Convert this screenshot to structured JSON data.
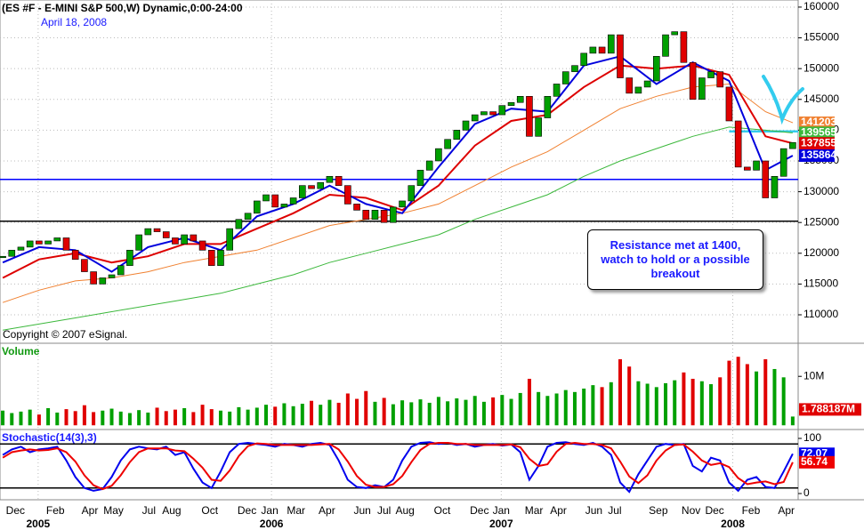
{
  "chart_data": [
    {
      "type": "candlestick",
      "title": "(ES #F - E-MINI S&P 500,W) Dynamic,0:00-24:00",
      "subtitle": "April 18, 2008",
      "footnote": "Copyright © 2007 eSignal.",
      "annotation": "Resistance met at 1400, watch to hold or a possible breakout",
      "color_up": "#00a000",
      "color_down": "#e00000",
      "values": [
        119500,
        120500,
        121000,
        122000,
        121500,
        122000,
        122500,
        120500,
        119000,
        117000,
        115000,
        116000,
        116500,
        118000,
        120500,
        123000,
        124000,
        123500,
        122500,
        121500,
        123000,
        122000,
        120500,
        118000,
        120500,
        124000,
        125500,
        126500,
        128500,
        129500,
        127500,
        128000,
        129000,
        131000,
        130500,
        131500,
        132500,
        131000,
        128000,
        127000,
        125500,
        127000,
        125000,
        127500,
        128500,
        131000,
        133500,
        135000,
        137000,
        138500,
        140000,
        141500,
        142500,
        143000,
        142500,
        144000,
        144500,
        145500,
        139000,
        142000,
        145500,
        147500,
        149500,
        150500,
        152500,
        153500,
        152500,
        155500,
        148500,
        146000,
        147000,
        148000,
        152000,
        155500,
        156000,
        151000,
        145000,
        148500,
        149500,
        147000,
        141500,
        134000,
        133500,
        135000,
        129000,
        132500,
        137000,
        138000
      ],
      "series": [
        {
          "color": "#f08030",
          "x": [
            0,
            4,
            8,
            12,
            16,
            20,
            24,
            28,
            32,
            36,
            40,
            44,
            48,
            52,
            56,
            60,
            64,
            68,
            72,
            76,
            80,
            84,
            87
          ],
          "values": [
            112000,
            114000,
            115500,
            116000,
            117000,
            118500,
            119500,
            120500,
            122500,
            124500,
            125500,
            126500,
            128000,
            131000,
            134000,
            136500,
            140000,
            143500,
            145500,
            147000,
            147500,
            143000,
            141203
          ]
        },
        {
          "color": "#3cb83c",
          "x": [
            0,
            4,
            8,
            12,
            16,
            20,
            24,
            28,
            32,
            36,
            40,
            44,
            48,
            52,
            56,
            60,
            64,
            68,
            72,
            76,
            80,
            84,
            87
          ],
          "values": [
            107500,
            108500,
            109500,
            110500,
            111500,
            112500,
            113500,
            115000,
            116500,
            118500,
            120000,
            121500,
            123000,
            125500,
            127500,
            129500,
            132500,
            135000,
            137000,
            139000,
            140500,
            140000,
            139565
          ]
        },
        {
          "color": "#dd0000",
          "x": [
            0,
            4,
            8,
            12,
            16,
            20,
            24,
            28,
            32,
            36,
            40,
            44,
            48,
            52,
            56,
            60,
            64,
            68,
            72,
            76,
            80,
            84,
            87
          ],
          "values": [
            116000,
            119000,
            120000,
            118500,
            119500,
            121500,
            121500,
            124000,
            126500,
            129500,
            129000,
            127000,
            131000,
            137500,
            141500,
            142500,
            147000,
            150500,
            150000,
            150500,
            149000,
            139000,
            137855
          ]
        },
        {
          "color": "#0000dd",
          "x": [
            0,
            4,
            8,
            12,
            16,
            20,
            24,
            28,
            32,
            36,
            40,
            44,
            48,
            52,
            56,
            60,
            64,
            68,
            72,
            76,
            80,
            84,
            87
          ],
          "values": [
            118500,
            121000,
            120500,
            117000,
            121000,
            122500,
            120500,
            126000,
            128000,
            131000,
            128000,
            126500,
            134000,
            141000,
            143500,
            143000,
            150500,
            152000,
            147500,
            151000,
            148000,
            133500,
            135864
          ]
        }
      ],
      "lines": [
        {
          "value": 132000,
          "color": "#0000ff",
          "start": -0.3
        },
        {
          "value": 125200,
          "color": "#000000",
          "start": -0.3
        },
        {
          "value": 139800,
          "color": "#33ccee",
          "start": 80
        }
      ],
      "xlim": [
        -0.3,
        87.6
      ],
      "ylim": [
        105520,
        161150
      ],
      "yticks": [
        110000,
        115000,
        120000,
        125000,
        130000,
        135000,
        140000,
        145000,
        150000,
        155000,
        160000
      ],
      "xticks": [
        {
          "value": 1.4,
          "label": "Dec"
        },
        {
          "value": 5.8,
          "label": "Feb"
        },
        {
          "value": 9.6,
          "label": "Apr"
        },
        {
          "value": 12.2,
          "label": "May"
        },
        {
          "value": 16.1,
          "label": "Jul"
        },
        {
          "value": 18.6,
          "label": "Aug"
        },
        {
          "value": 22.8,
          "label": "Oct"
        },
        {
          "value": 26.9,
          "label": "Dec"
        },
        {
          "value": 29.4,
          "label": "Jan"
        },
        {
          "value": 32.3,
          "label": "Mar"
        },
        {
          "value": 35.7,
          "label": "Apr"
        },
        {
          "value": 39.6,
          "label": "Jun"
        },
        {
          "value": 42,
          "label": "Jul"
        },
        {
          "value": 44.3,
          "label": "Aug"
        },
        {
          "value": 48.4,
          "label": "Oct"
        },
        {
          "value": 52.5,
          "label": "Dec"
        },
        {
          "value": 54.9,
          "label": "Jan"
        },
        {
          "value": 58.5,
          "label": "Mar"
        },
        {
          "value": 61.2,
          "label": "Apr"
        },
        {
          "value": 65.1,
          "label": "Jun"
        },
        {
          "value": 67.4,
          "label": "Jul"
        },
        {
          "value": 72.2,
          "label": "Sep"
        },
        {
          "value": 75.8,
          "label": "Nov"
        },
        {
          "value": 78.4,
          "label": "Dec"
        },
        {
          "value": 82.4,
          "label": "Feb"
        },
        {
          "value": 86.3,
          "label": "Apr"
        }
      ],
      "year_labels": [
        {
          "value": 3.9,
          "label": "2005"
        },
        {
          "value": 29.6,
          "label": "2006"
        },
        {
          "value": 54.9,
          "label": "2007"
        },
        {
          "value": 80.4,
          "label": "2008"
        }
      ],
      "grid": true
    },
    {
      "type": "bar",
      "title": "Volume",
      "values": [
        3000000,
        2500000,
        2800000,
        3200000,
        2200000,
        3500000,
        2600000,
        3300000,
        2900000,
        4100000,
        2700000,
        3000000,
        3400000,
        2800000,
        2500000,
        3100000,
        2600000,
        3600000,
        2900000,
        3200000,
        3500000,
        2700000,
        4200000,
        3300000,
        3000000,
        2800000,
        3700000,
        3200000,
        3600000,
        4200000,
        3800000,
        4500000,
        3900000,
        4400000,
        5000000,
        4200000,
        5200000,
        4600000,
        6500000,
        5400000,
        7000000,
        4800000,
        5600000,
        4300000,
        5100000,
        4700000,
        5300000,
        4600000,
        5800000,
        4900000,
        5500000,
        5200000,
        6000000,
        4800000,
        5700000,
        6200000,
        5400000,
        6600000,
        9500000,
        6800000,
        6000000,
        6500000,
        7200000,
        6800000,
        7500000,
        8200000,
        7800000,
        8800000,
        13500000,
        12000000,
        9000000,
        8500000,
        7800000,
        8600000,
        9200000,
        10800000,
        9500000,
        9000000,
        8400000,
        9800000,
        13200000,
        14000000,
        12500000,
        11000000,
        13500000,
        11500000,
        9800000,
        1788187
      ],
      "value_labels": {
        "87": "1.788187M"
      },
      "ylim": [
        -680000,
        16400000
      ],
      "yticks": [
        {
          "value": 10000000,
          "label": "10M"
        }
      ]
    },
    {
      "type": "line",
      "title": "Stochastic(14(3),3)",
      "series": [
        {
          "color": "#0000ee",
          "values": [
            70,
            80,
            85,
            75,
            80,
            82,
            85,
            60,
            30,
            10,
            5,
            8,
            30,
            60,
            80,
            85,
            82,
            80,
            85,
            70,
            75,
            45,
            20,
            10,
            40,
            75,
            90,
            92,
            90,
            88,
            85,
            90,
            88,
            85,
            90,
            92,
            88,
            60,
            25,
            12,
            10,
            15,
            12,
            25,
            60,
            85,
            92,
            93,
            90,
            92,
            88,
            90,
            85,
            88,
            90,
            87,
            89,
            75,
            25,
            50,
            85,
            92,
            93,
            90,
            88,
            92,
            85,
            70,
            20,
            3,
            35,
            60,
            85,
            90,
            88,
            90,
            50,
            40,
            65,
            60,
            20,
            5,
            25,
            30,
            12,
            10,
            40,
            72.07
          ]
        },
        {
          "color": "#ee0000",
          "values": [
            65,
            75,
            78,
            80,
            78,
            79,
            82,
            75,
            58,
            33,
            15,
            8,
            14,
            33,
            57,
            75,
            82,
            82,
            82,
            78,
            77,
            63,
            47,
            25,
            23,
            42,
            68,
            86,
            91,
            90,
            88,
            88,
            88,
            88,
            88,
            89,
            90,
            80,
            58,
            32,
            16,
            12,
            12,
            17,
            32,
            57,
            79,
            90,
            92,
            92,
            90,
            90,
            88,
            88,
            88,
            88,
            89,
            84,
            63,
            50,
            53,
            76,
            90,
            92,
            90,
            90,
            88,
            82,
            58,
            31,
            19,
            33,
            60,
            78,
            88,
            89,
            76,
            60,
            52,
            55,
            48,
            28,
            17,
            20,
            22,
            17,
            21,
            56.74
          ]
        }
      ],
      "levels": [
        90,
        10
      ],
      "ylim": [
        -11.3,
        114.5
      ],
      "yticks": [
        0,
        100
      ]
    }
  ]
}
